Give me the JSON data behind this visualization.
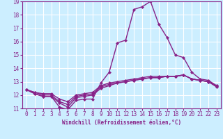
{
  "background_color": "#cceeff",
  "grid_color": "#ffffff",
  "line_color": "#882288",
  "marker": "D",
  "markersize": 2.0,
  "linewidth": 1.0,
  "xlim": [
    -0.5,
    23.5
  ],
  "ylim": [
    11,
    19
  ],
  "yticks": [
    11,
    12,
    13,
    14,
    15,
    16,
    17,
    18,
    19
  ],
  "xticks": [
    0,
    1,
    2,
    3,
    4,
    5,
    6,
    7,
    8,
    9,
    10,
    11,
    12,
    13,
    14,
    15,
    16,
    17,
    18,
    19,
    20,
    21,
    22,
    23
  ],
  "xlabel": "Windchill (Refroidissement éolien,°C)",
  "tick_fontsize": 5.5,
  "xlabel_fontsize": 5.5,
  "series": [
    [
      12.4,
      12.1,
      11.9,
      11.9,
      11.1,
      10.9,
      11.6,
      11.7,
      11.7,
      12.9,
      13.7,
      15.9,
      16.1,
      18.4,
      18.6,
      19.0,
      17.3,
      16.3,
      15.0,
      14.8,
      13.7,
      13.2,
      13.1,
      12.7
    ],
    [
      12.4,
      12.1,
      11.9,
      11.9,
      11.4,
      11.1,
      11.8,
      11.9,
      12.0,
      12.5,
      12.7,
      12.9,
      13.0,
      13.1,
      13.2,
      13.3,
      13.3,
      13.4,
      13.4,
      13.5,
      13.2,
      13.1,
      13.0,
      12.6
    ],
    [
      12.4,
      12.2,
      12.0,
      12.0,
      11.5,
      11.3,
      11.9,
      12.0,
      12.1,
      12.6,
      12.8,
      12.9,
      13.0,
      13.1,
      13.2,
      13.3,
      13.3,
      13.4,
      13.4,
      13.5,
      13.2,
      13.1,
      13.0,
      12.65
    ],
    [
      12.4,
      12.2,
      12.1,
      12.1,
      11.7,
      11.5,
      12.0,
      12.1,
      12.2,
      12.7,
      12.9,
      13.0,
      13.1,
      13.2,
      13.3,
      13.4,
      13.4,
      13.4,
      13.4,
      13.5,
      13.2,
      13.1,
      13.0,
      12.7
    ]
  ]
}
